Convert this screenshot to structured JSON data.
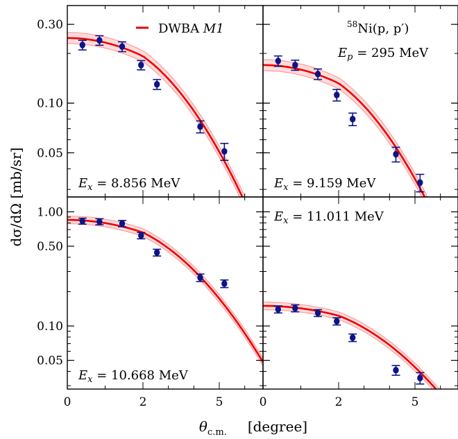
{
  "chart_data": {
    "type": "scatter",
    "legend": {
      "label": "DWBA ",
      "label_italic": "M1",
      "color": "#ee0000",
      "placement": "top-center"
    },
    "annotation": {
      "reaction": "Ni(p, p′)",
      "reaction_sup": "58",
      "energy": "E_p = 295 MeV"
    },
    "ylabel": "dσ/dΩ      [mb/sr]",
    "xlabel": "θ_c.m.      [degree]",
    "x_tick_values": [
      0,
      2,
      5
    ],
    "x_tick_labels": [
      "0",
      "2",
      "5"
    ],
    "y_scale": "log",
    "line_color": "#ee0000",
    "band_color": "#ff9a9a",
    "marker_color": "#0d1486",
    "panels": [
      {
        "label": "E_x = 8.856 MeV",
        "ylim": [
          0.027,
          0.39
        ],
        "yticks": [
          0.05,
          0.1,
          0.3
        ],
        "ytick_labels": [
          "0.05",
          "0.10",
          "0.30"
        ],
        "x": [
          0.5,
          1.2,
          2.0,
          2.9,
          3.8,
          5.0,
          5.9
        ],
        "y": [
          0.225,
          0.24,
          0.22,
          0.17,
          0.13,
          0.072,
          0.051
        ],
        "err": [
          0.015,
          0.016,
          0.015,
          0.011,
          0.009,
          0.006,
          0.006
        ],
        "curve": {
          "A": 0.248,
          "w": 0.34
        }
      },
      {
        "label": "E_x = 9.159 MeV",
        "ylim": [
          0.027,
          0.39
        ],
        "yticks": [
          0.05,
          0.1,
          0.3
        ],
        "ytick_labels": [
          "",
          "",
          ""
        ],
        "x": [
          0.5,
          1.2,
          2.0,
          2.9,
          3.8,
          5.0,
          5.9
        ],
        "y": [
          0.18,
          0.17,
          0.15,
          0.112,
          0.08,
          0.049,
          0.033
        ],
        "err": [
          0.013,
          0.012,
          0.011,
          0.009,
          0.007,
          0.005,
          0.004
        ],
        "curve": {
          "A": 0.17,
          "w": 0.34
        }
      },
      {
        "label": "E_x = 10.668 MeV",
        "ylim": [
          0.028,
          1.35
        ],
        "yticks": [
          0.05,
          0.1,
          0.5,
          1.0
        ],
        "ytick_labels": [
          "0.05",
          "0.10",
          "0.50",
          "1.00"
        ],
        "x": [
          0.5,
          1.2,
          2.0,
          2.9,
          3.8,
          5.0,
          5.9
        ],
        "y": [
          0.83,
          0.82,
          0.79,
          0.62,
          0.44,
          0.265,
          0.235
        ],
        "err": [
          0.05,
          0.05,
          0.05,
          0.04,
          0.03,
          0.02,
          0.018
        ],
        "curve": {
          "A": 0.85,
          "w": 0.34
        }
      },
      {
        "label": "E_x = 11.011 MeV",
        "ylim": [
          0.028,
          1.35
        ],
        "yticks": [
          0.05,
          0.1,
          0.5,
          1.0
        ],
        "ytick_labels": [
          "",
          "",
          "",
          ""
        ],
        "x": [
          0.5,
          1.2,
          2.0,
          2.9,
          3.8,
          5.0,
          5.9
        ],
        "y": [
          0.14,
          0.143,
          0.13,
          0.11,
          0.079,
          0.041,
          0.035
        ],
        "err": [
          0.01,
          0.01,
          0.009,
          0.008,
          0.006,
          0.004,
          0.004
        ],
        "curve": {
          "A": 0.15,
          "w": 0.3
        }
      }
    ]
  }
}
